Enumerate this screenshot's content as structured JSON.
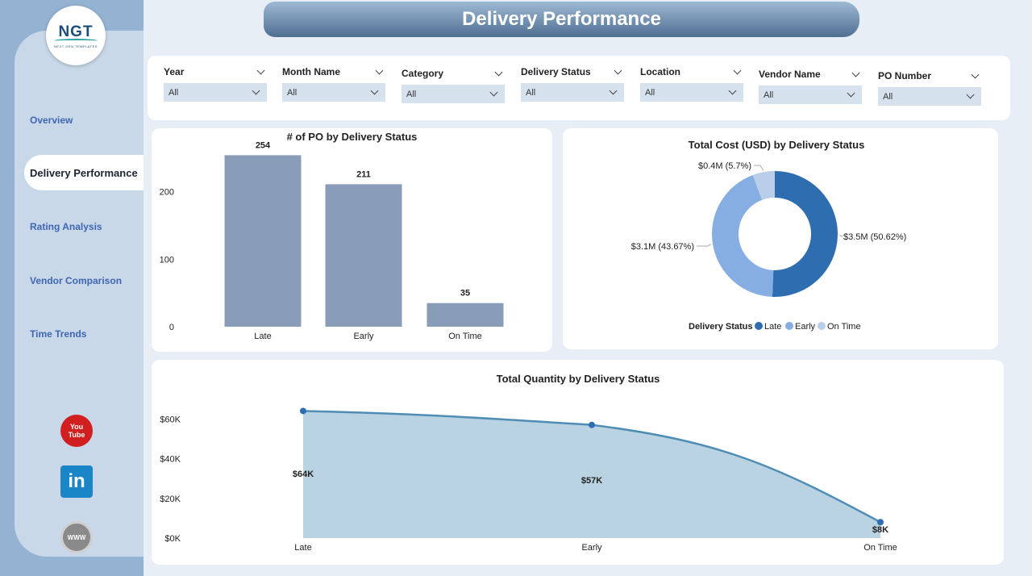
{
  "header": {
    "title": "Delivery Performance"
  },
  "logo": {
    "main": "NGT",
    "sub": "NEXT GEN TEMPLATES"
  },
  "nav": {
    "items": [
      {
        "label": "Overview"
      },
      {
        "label": "Delivery Performance",
        "active": true
      },
      {
        "label": "Rating Analysis"
      },
      {
        "label": "Vendor Comparison"
      },
      {
        "label": "Time Trends"
      }
    ]
  },
  "social": {
    "youtube_line1": "You",
    "youtube_line2": "Tube",
    "linkedin": "in",
    "www": "WWW"
  },
  "filters": [
    {
      "label": "Year",
      "value": "All"
    },
    {
      "label": "Month Name",
      "value": "All"
    },
    {
      "label": "Category",
      "value": "All"
    },
    {
      "label": "Delivery Status",
      "value": "All"
    },
    {
      "label": "Location",
      "value": "All"
    },
    {
      "label": "Vendor Name",
      "value": "All"
    },
    {
      "label": "PO Number",
      "value": "All"
    }
  ],
  "colors": {
    "bar": "#8a9db8",
    "late": "#2e6eb0",
    "early": "#86aee3",
    "on_time": "#b9cfe9",
    "area_fill": "#b9d3e2",
    "area_line": "#4f8db5"
  },
  "chart_data": [
    {
      "type": "bar",
      "title": "# of PO by Delivery Status",
      "categories": [
        "Late",
        "Early",
        "On Time"
      ],
      "values": [
        254,
        211,
        35
      ],
      "data_labels": [
        "254",
        "211",
        "35"
      ],
      "yticks": [
        "0",
        "100",
        "200"
      ],
      "ylim": [
        0,
        270
      ]
    },
    {
      "type": "pie",
      "title": "Total Cost (USD) by Delivery Status",
      "categories": [
        "Late",
        "Early",
        "On Time"
      ],
      "values": [
        50.62,
        43.67,
        5.7
      ],
      "data_labels": [
        "$3.5M (50.62%)",
        "$3.1M (43.67%)",
        "$0.4M (5.7%)"
      ],
      "legend_title": "Delivery Status",
      "legend": [
        "Late",
        "Early",
        "On Time"
      ]
    },
    {
      "type": "area",
      "title": "Total Quantity by Delivery Status",
      "categories": [
        "Late",
        "Early",
        "On Time"
      ],
      "values": [
        64000,
        57000,
        8000
      ],
      "data_labels": [
        "$64K",
        "$57K",
        "$8K"
      ],
      "yticks": [
        "$0K",
        "$20K",
        "$40K",
        "$60K"
      ],
      "ylim": [
        0,
        65000
      ]
    }
  ]
}
